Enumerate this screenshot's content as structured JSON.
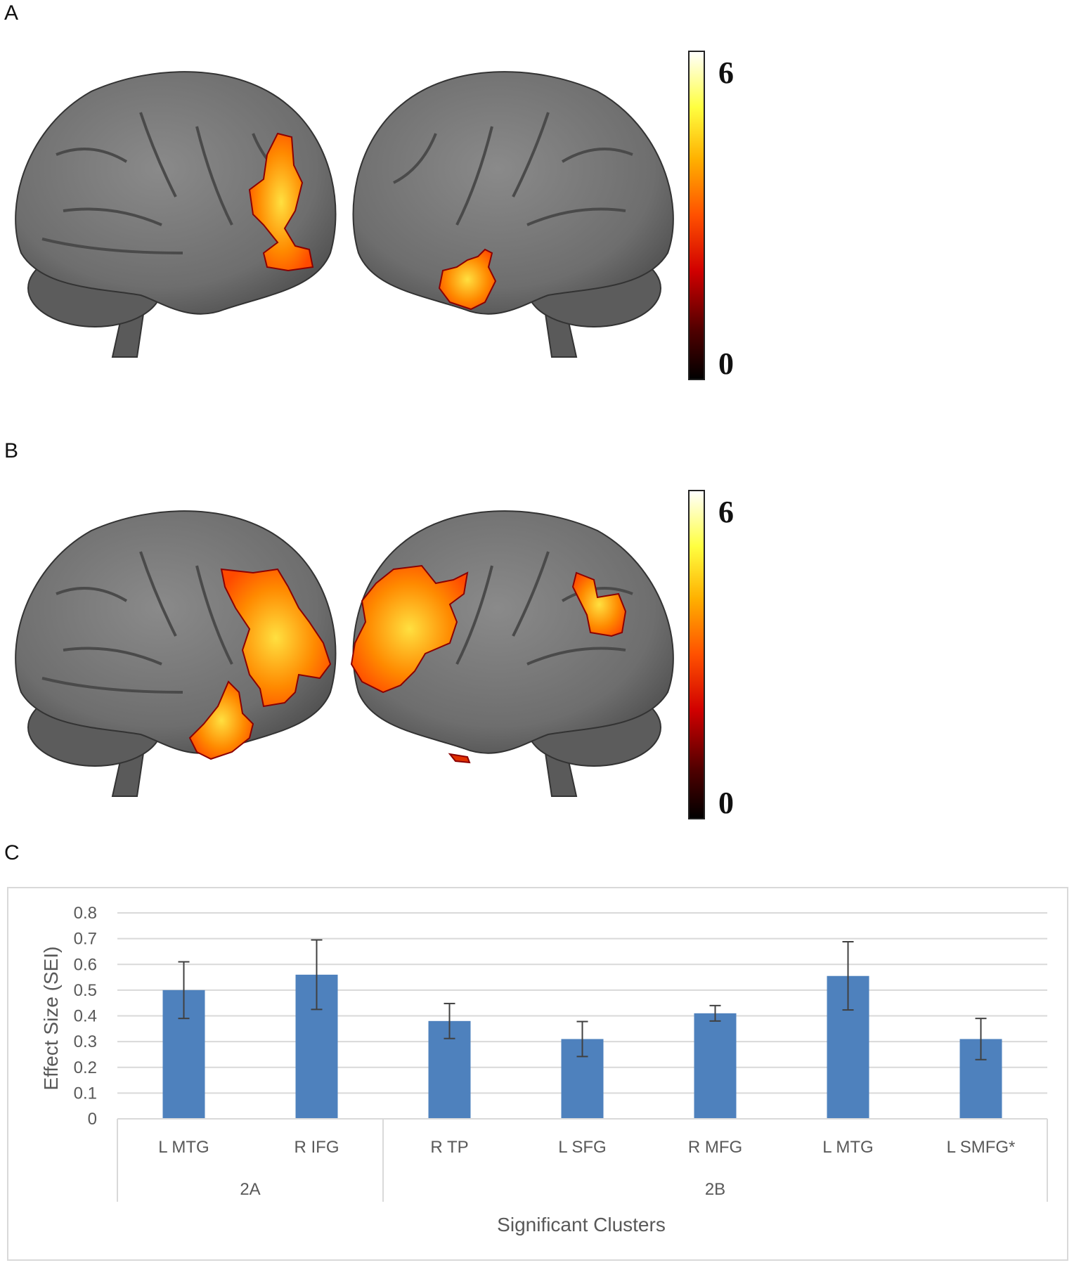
{
  "panels": {
    "a_label": "A",
    "b_label": "B",
    "c_label": "C"
  },
  "colorbar": {
    "max_label": "6",
    "min_label": "0",
    "colors": [
      "#ffffff",
      "#ffff40",
      "#ffb000",
      "#ff5000",
      "#d00000",
      "#500000",
      "#000000"
    ]
  },
  "chart_data": {
    "type": "bar",
    "categories": [
      "L MTG",
      "R IFG",
      "R TP",
      "L SFG",
      "R MFG",
      "L MTG",
      "L SMFG*"
    ],
    "groups": [
      {
        "label": "2A",
        "count": 2
      },
      {
        "label": "2B",
        "count": 5
      }
    ],
    "values": [
      0.5,
      0.56,
      0.38,
      0.31,
      0.41,
      0.555,
      0.31
    ],
    "error_upper": [
      0.61,
      0.695,
      0.448,
      0.378,
      0.44,
      0.688,
      0.39
    ],
    "error_lower": [
      0.39,
      0.425,
      0.312,
      0.242,
      0.38,
      0.423,
      0.23
    ],
    "ylim": [
      0,
      0.8
    ],
    "yticks": [
      "0",
      "0.1",
      "0.2",
      "0.3",
      "0.4",
      "0.5",
      "0.6",
      "0.7",
      "0.8"
    ],
    "ylabel": "Effect Size (SEI)",
    "xlabel": "Significant Clusters",
    "bar_color": "#4e81bd",
    "grid": true
  }
}
